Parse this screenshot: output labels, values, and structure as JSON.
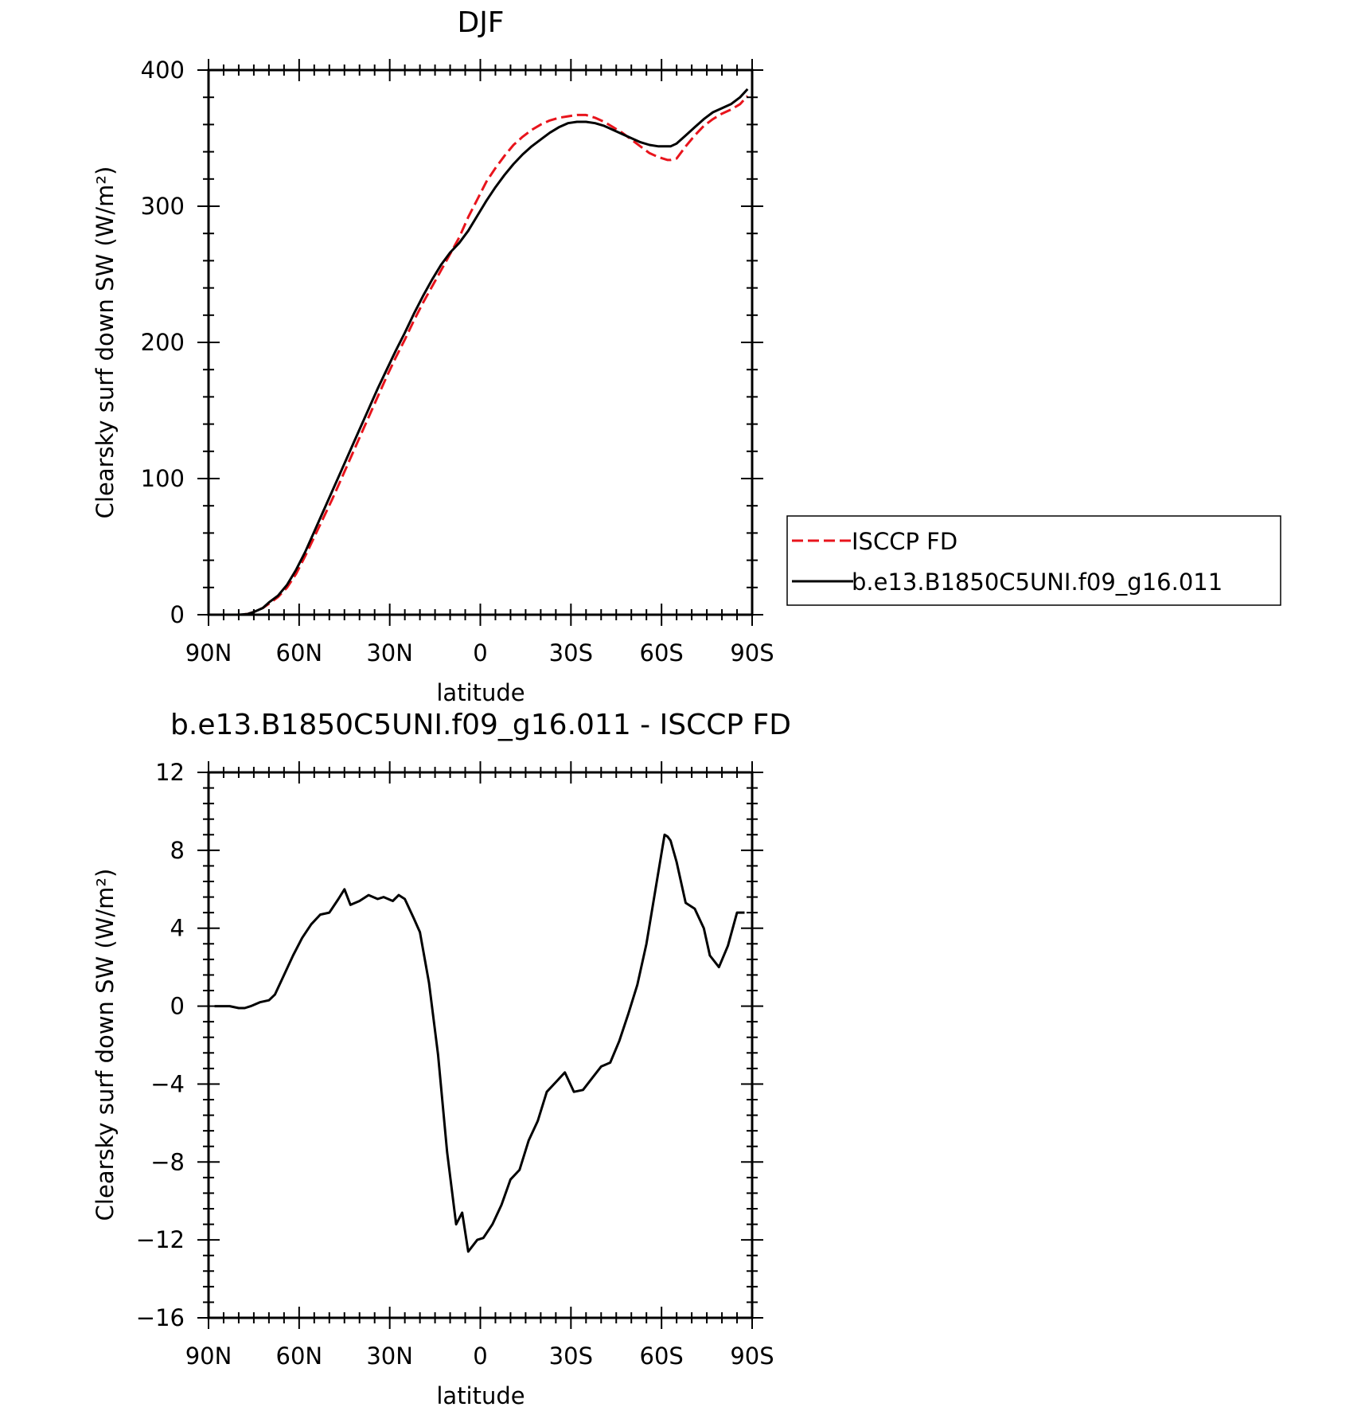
{
  "chart_data": [
    {
      "type": "line",
      "title": "DJF",
      "xlabel": "latitude",
      "ylabel": "Clearsky surf down SW (W/m²)",
      "xlim": [
        -90,
        90
      ],
      "ylim": [
        0,
        400
      ],
      "x_ticks": [
        -90,
        -60,
        -30,
        0,
        30,
        60,
        90
      ],
      "x_tick_labels": [
        "90N",
        "60N",
        "30N",
        "0",
        "30S",
        "60S",
        "90S"
      ],
      "y_ticks": [
        0,
        100,
        200,
        300,
        400
      ],
      "y_tick_labels": [
        "0",
        "100",
        "200",
        "300",
        "400"
      ],
      "legend": {
        "position": "right",
        "entries": [
          "ISCCP FD",
          "b.e13.B1850C5UNI.f09_g16.011"
        ]
      },
      "series": [
        {
          "name": "ISCCP FD",
          "color": "#e8141c",
          "dash": "dashed",
          "x": [
            -88.5,
            -85,
            -80,
            -77,
            -75,
            -72,
            -70,
            -67,
            -64,
            -61,
            -58,
            -55,
            -52,
            -49,
            -46,
            -43,
            -40,
            -37,
            -34,
            -31,
            -28,
            -25,
            -22,
            -19,
            -16,
            -13,
            -10,
            -7,
            -4,
            -1,
            2,
            5,
            8,
            11,
            14,
            17,
            20,
            23,
            26,
            29,
            32,
            35,
            38,
            41,
            44,
            47,
            50,
            53,
            56,
            59,
            62,
            63,
            65,
            66,
            68,
            71,
            74,
            77,
            80,
            83,
            86,
            88.5
          ],
          "y": [
            0,
            0,
            0,
            0.5,
            2,
            5,
            8,
            13,
            20,
            30,
            43,
            57,
            71,
            85,
            100,
            115,
            130,
            145,
            160,
            175,
            189,
            202,
            216,
            229,
            241,
            253,
            265,
            277,
            292,
            305,
            318,
            328,
            337,
            345,
            351,
            356,
            360,
            363,
            365,
            366,
            367,
            367,
            365,
            362,
            358,
            354,
            349,
            344,
            339,
            336,
            334,
            334,
            335,
            338,
            344,
            352,
            359,
            364,
            368,
            371,
            375,
            381
          ]
        },
        {
          "name": "b.e13.B1850C5UNI.f09_g16.011",
          "color": "#000000",
          "dash": "solid",
          "x": [
            -88.5,
            -85,
            -80,
            -77,
            -75,
            -72,
            -70,
            -67,
            -64,
            -61,
            -58,
            -55,
            -52,
            -49,
            -46,
            -43,
            -40,
            -37,
            -34,
            -31,
            -28,
            -25,
            -22,
            -19,
            -16,
            -13,
            -10,
            -7,
            -4,
            -1,
            2,
            5,
            8,
            11,
            14,
            17,
            20,
            23,
            26,
            29,
            32,
            35,
            38,
            41,
            44,
            47,
            50,
            53,
            56,
            59,
            62,
            63,
            65,
            66,
            68,
            71,
            74,
            77,
            80,
            83,
            86,
            88.5
          ],
          "y": [
            0,
            0,
            0,
            0.5,
            2,
            5,
            9,
            14,
            22,
            33,
            46,
            61,
            76,
            91,
            106,
            121,
            136,
            151,
            166,
            180,
            194,
            207,
            221,
            234,
            246,
            257,
            266,
            273,
            282,
            293,
            304,
            314,
            323,
            331,
            338,
            344,
            349,
            354,
            358,
            361,
            362,
            362,
            361,
            359,
            356,
            353,
            350,
            347,
            345,
            344,
            344,
            344,
            346,
            348,
            352,
            358,
            364,
            369,
            372,
            375,
            380,
            386
          ]
        }
      ]
    },
    {
      "type": "line",
      "title": "b.e13.B1850C5UNI.f09_g16.011 - ISCCP FD",
      "xlabel": "latitude",
      "ylabel": "Clearsky surf down SW (W/m²)",
      "xlim": [
        -90,
        90
      ],
      "ylim": [
        -16,
        12
      ],
      "x_ticks": [
        -90,
        -60,
        -30,
        0,
        30,
        60,
        90
      ],
      "x_tick_labels": [
        "90N",
        "60N",
        "30N",
        "0",
        "30S",
        "60S",
        "90S"
      ],
      "y_ticks": [
        -16,
        -12,
        -8,
        -4,
        0,
        4,
        8,
        12
      ],
      "y_tick_labels": [
        "−16",
        "−12",
        "−8",
        "−4",
        "0",
        "4",
        "8",
        "12"
      ],
      "series": [
        {
          "color": "#000000",
          "dash": "solid",
          "x": [
            -88,
            -83,
            -80,
            -78,
            -76,
            -73,
            -70,
            -68,
            -65,
            -62,
            -59,
            -56,
            -53,
            -50,
            -47,
            -45,
            -43,
            -40,
            -37,
            -34,
            -32,
            -29,
            -27,
            -25,
            -22,
            -20,
            -17,
            -14,
            -11,
            -8,
            -6,
            -4,
            -1,
            1,
            4,
            7,
            10,
            13,
            16,
            19,
            22,
            25,
            28,
            31,
            34,
            37,
            40,
            43,
            46,
            49,
            52,
            55,
            58,
            61,
            62,
            63,
            65,
            68,
            71,
            74,
            76,
            79,
            82,
            85,
            87.5
          ],
          "y": [
            0,
            0,
            -0.1,
            -0.1,
            0,
            0.2,
            0.3,
            0.6,
            1.6,
            2.6,
            3.5,
            4.2,
            4.7,
            4.8,
            5.5,
            6.0,
            5.2,
            5.4,
            5.7,
            5.5,
            5.6,
            5.4,
            5.7,
            5.5,
            4.5,
            3.8,
            1.2,
            -2.5,
            -7.5,
            -11.2,
            -10.6,
            -12.6,
            -12.0,
            -11.9,
            -11.2,
            -10.2,
            -8.9,
            -8.4,
            -6.9,
            -5.9,
            -4.4,
            -3.9,
            -3.4,
            -4.4,
            -4.3,
            -3.7,
            -3.1,
            -2.9,
            -1.8,
            -0.4,
            1.1,
            3.2,
            6.0,
            8.8,
            8.7,
            8.5,
            7.4,
            5.3,
            5.0,
            4.0,
            2.6,
            2.0,
            3.1,
            4.8,
            4.8
          ]
        }
      ]
    }
  ]
}
